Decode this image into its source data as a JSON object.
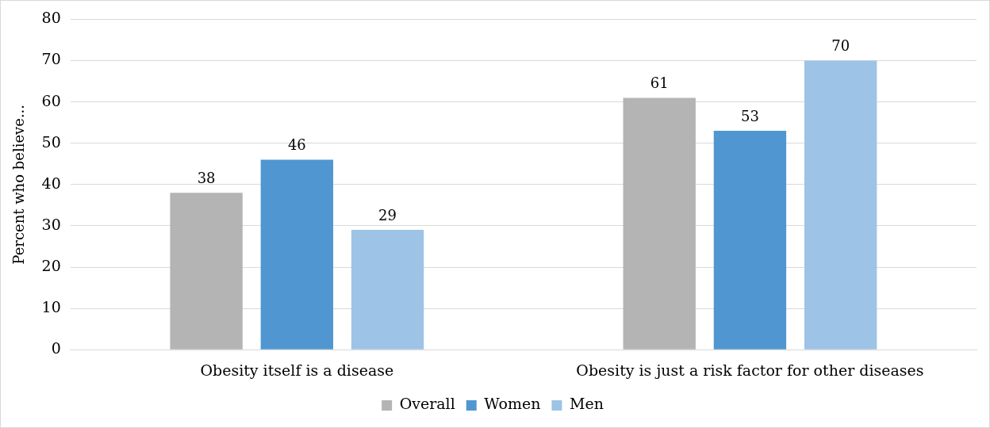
{
  "chart_data": {
    "type": "bar",
    "ylabel": "Percent who believe...",
    "categories": [
      "Obesity itself is a disease",
      "Obesity is just a risk factor for other diseases"
    ],
    "series": [
      {
        "name": "Overall",
        "color": "#b4b4b4",
        "values": [
          38,
          61
        ]
      },
      {
        "name": "Women",
        "color": "#5097d1",
        "values": [
          46,
          53
        ]
      },
      {
        "name": "Men",
        "color": "#9dc3e6",
        "values": [
          29,
          70
        ]
      }
    ],
    "ylim": [
      0,
      80
    ],
    "yticks": [
      0,
      10,
      20,
      30,
      40,
      50,
      60,
      70,
      80
    ],
    "grid": "y",
    "legend": "bottom",
    "data_labels": true
  }
}
